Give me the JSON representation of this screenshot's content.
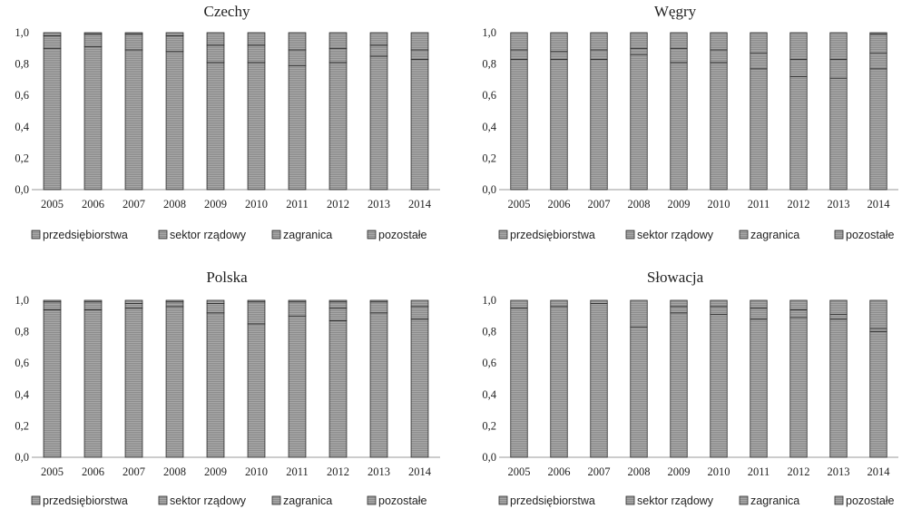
{
  "chart_data": [
    {
      "type": "bar",
      "stacked": true,
      "title": "Czechy",
      "categories": [
        "2005",
        "2006",
        "2007",
        "2008",
        "2009",
        "2010",
        "2011",
        "2012",
        "2013",
        "2014"
      ],
      "ylim": [
        0,
        1
      ],
      "yticks": [
        "0,0",
        "0,2",
        "0,4",
        "0,6",
        "0,8",
        "1,0"
      ],
      "series": [
        {
          "name": "przedsiębiorstwa",
          "values": [
            0.9,
            0.91,
            0.89,
            0.88,
            0.81,
            0.81,
            0.79,
            0.81,
            0.85,
            0.83
          ]
        },
        {
          "name": "sektor rządowy",
          "values": [
            0.08,
            0.08,
            0.1,
            0.1,
            0.11,
            0.11,
            0.1,
            0.09,
            0.07,
            0.06
          ]
        },
        {
          "name": "zagranica",
          "values": [
            0.02,
            0.01,
            0.01,
            0.02,
            0.08,
            0.08,
            0.11,
            0.1,
            0.08,
            0.11
          ]
        },
        {
          "name": "pozostałe",
          "values": [
            0.0,
            0.0,
            0.0,
            0.0,
            0.0,
            0.0,
            0.0,
            0.0,
            0.0,
            0.0
          ]
        }
      ]
    },
    {
      "type": "bar",
      "stacked": true,
      "title": "Węgry",
      "categories": [
        "2005",
        "2006",
        "2007",
        "2008",
        "2009",
        "2010",
        "2011",
        "2012",
        "2013",
        "2014"
      ],
      "ylim": [
        0,
        1
      ],
      "yticks": [
        "0,0",
        "0,2",
        "0,4",
        "0,6",
        "0,8",
        "1,0"
      ],
      "series": [
        {
          "name": "przedsiębiorstwa",
          "values": [
            0.83,
            0.83,
            0.83,
            0.86,
            0.81,
            0.81,
            0.77,
            0.72,
            0.71,
            0.77
          ]
        },
        {
          "name": "sektor rządowy",
          "values": [
            0.06,
            0.05,
            0.06,
            0.04,
            0.09,
            0.08,
            0.1,
            0.11,
            0.12,
            0.1
          ]
        },
        {
          "name": "zagranica",
          "values": [
            0.11,
            0.12,
            0.11,
            0.1,
            0.1,
            0.11,
            0.13,
            0.17,
            0.17,
            0.12
          ]
        },
        {
          "name": "pozostałe",
          "values": [
            0.0,
            0.0,
            0.0,
            0.0,
            0.0,
            0.0,
            0.0,
            0.0,
            0.0,
            0.01
          ]
        }
      ]
    },
    {
      "type": "bar",
      "stacked": true,
      "title": "Polska",
      "categories": [
        "2005",
        "2006",
        "2007",
        "2008",
        "2009",
        "2010",
        "2011",
        "2012",
        "2013",
        "2014"
      ],
      "ylim": [
        0,
        1
      ],
      "yticks": [
        "0,0",
        "0,2",
        "0,4",
        "0,6",
        "0,8",
        "1,0"
      ],
      "series": [
        {
          "name": "przedsiębiorstwa",
          "values": [
            0.94,
            0.94,
            0.95,
            0.96,
            0.92,
            0.85,
            0.9,
            0.87,
            0.92,
            0.88
          ]
        },
        {
          "name": "sektor rządowy",
          "values": [
            0.05,
            0.05,
            0.03,
            0.03,
            0.06,
            0.14,
            0.09,
            0.08,
            0.07,
            0.08
          ]
        },
        {
          "name": "zagranica",
          "values": [
            0.01,
            0.01,
            0.02,
            0.01,
            0.02,
            0.01,
            0.01,
            0.04,
            0.01,
            0.04
          ]
        },
        {
          "name": "pozostałe",
          "values": [
            0.0,
            0.0,
            0.0,
            0.0,
            0.0,
            0.0,
            0.0,
            0.01,
            0.0,
            0.0
          ]
        }
      ]
    },
    {
      "type": "bar",
      "stacked": true,
      "title": "Słowacja",
      "categories": [
        "2005",
        "2006",
        "2007",
        "2008",
        "2009",
        "2010",
        "2011",
        "2012",
        "2013",
        "2014"
      ],
      "ylim": [
        0,
        1
      ],
      "yticks": [
        "0,0",
        "0,2",
        "0,4",
        "0,6",
        "0,8",
        "1,0"
      ],
      "series": [
        {
          "name": "przedsiębiorstwa",
          "values": [
            0.95,
            0.96,
            0.98,
            0.83,
            0.92,
            0.91,
            0.88,
            0.89,
            0.88,
            0.8
          ]
        },
        {
          "name": "sektor rządowy",
          "values": [
            0.05,
            0.04,
            0.02,
            0.17,
            0.04,
            0.05,
            0.07,
            0.05,
            0.03,
            0.02
          ]
        },
        {
          "name": "zagranica",
          "values": [
            0.0,
            0.0,
            0.0,
            0.0,
            0.04,
            0.04,
            0.05,
            0.06,
            0.09,
            0.18
          ]
        },
        {
          "name": "pozostałe",
          "values": [
            0.0,
            0.0,
            0.0,
            0.0,
            0.0,
            0.0,
            0.0,
            0.0,
            0.0,
            0.0
          ]
        }
      ]
    }
  ],
  "legend": {
    "items": [
      "przedsiębiorstwa",
      "sektor rządowy",
      "zagranica",
      "pozostałe"
    ],
    "position": "bottom"
  },
  "colors": {
    "przedsiębiorstwa": "#a3a3a3",
    "sektor rządowy": "#b9b9b9",
    "zagranica": "#aeaeae",
    "pozostałe": "#c6c6c6",
    "outline": "#2a2a2a",
    "axis": "#9a9a9a"
  }
}
